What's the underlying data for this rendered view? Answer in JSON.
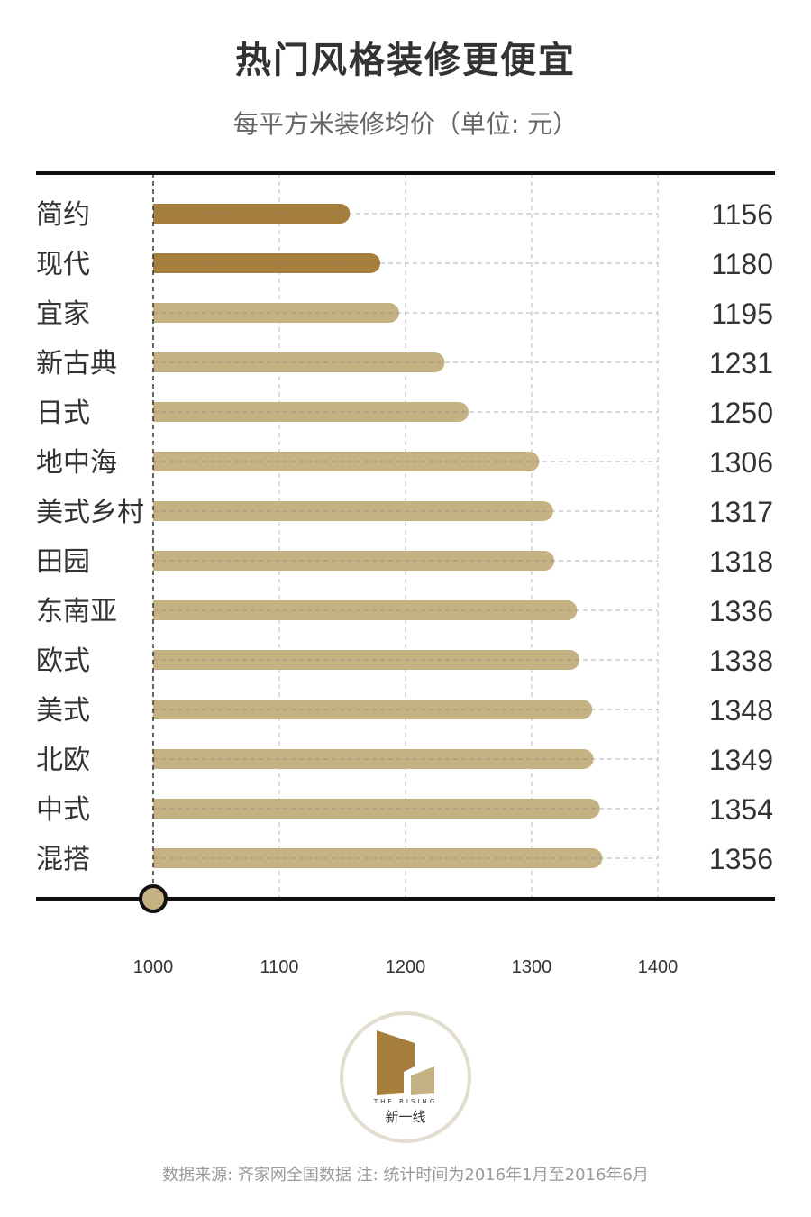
{
  "title": "热门风格装修更便宜",
  "subtitle": "每平方米装修均价（单位: 元）",
  "colors": {
    "highlight_bar": "#a67f3c",
    "normal_bar": "#c4b283",
    "axis_line": "#111111",
    "grid_line": "#bbbbbb",
    "text": "#333333",
    "logo_ring": "#e3ddd0",
    "logo_dark": "#a67f3c",
    "logo_light": "#c4b283"
  },
  "chart_data": {
    "type": "bar",
    "orientation": "horizontal",
    "categories": [
      "简约",
      "现代",
      "宜家",
      "新古典",
      "日式",
      "地中海",
      "美式乡村",
      "田园",
      "东南亚",
      "欧式",
      "美式",
      "北欧",
      "中式",
      "混搭"
    ],
    "values": [
      1156,
      1180,
      1195,
      1231,
      1250,
      1306,
      1317,
      1318,
      1336,
      1338,
      1348,
      1349,
      1354,
      1356
    ],
    "highlighted": [
      "简约",
      "现代"
    ],
    "value_labels": [
      "1156",
      "1180",
      "1195",
      "1231",
      "1250",
      "1306",
      "1317",
      "1318",
      "1336",
      "1338",
      "1348",
      "1349",
      "1354",
      "1356"
    ],
    "xlim": [
      1000,
      1400
    ],
    "xticks": [
      1000,
      1100,
      1200,
      1300,
      1400
    ],
    "xtick_labels": [
      "1000",
      "1100",
      "1200",
      "1300",
      "1400"
    ],
    "grid": true,
    "xlabel": "",
    "ylabel": ""
  },
  "logo": {
    "name_en": "THE RISING",
    "name_cn": "新一线"
  },
  "footnote": "数据来源: 齐家网全国数据  注: 统计时间为2016年1月至2016年6月"
}
